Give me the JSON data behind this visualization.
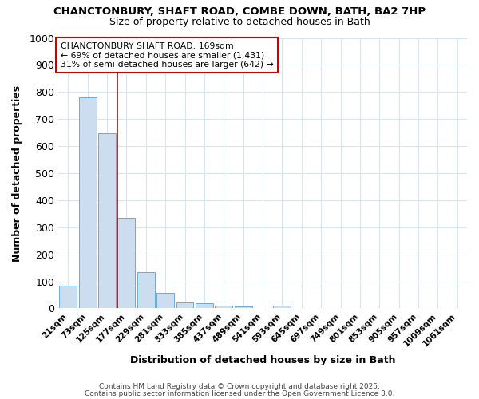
{
  "title1": "CHANCTONBURY, SHAFT ROAD, COMBE DOWN, BATH, BA2 7HP",
  "title2": "Size of property relative to detached houses in Bath",
  "xlabel": "Distribution of detached houses by size in Bath",
  "ylabel": "Number of detached properties",
  "bar_color": "#ccddf0",
  "bar_edge_color": "#6aaad4",
  "categories": [
    "21sqm",
    "73sqm",
    "125sqm",
    "177sqm",
    "229sqm",
    "281sqm",
    "333sqm",
    "385sqm",
    "437sqm",
    "489sqm",
    "541sqm",
    "593sqm",
    "645sqm",
    "697sqm",
    "749sqm",
    "801sqm",
    "853sqm",
    "905sqm",
    "957sqm",
    "1009sqm",
    "1061sqm"
  ],
  "values": [
    85,
    780,
    648,
    335,
    135,
    58,
    22,
    18,
    10,
    8,
    0,
    10,
    0,
    0,
    0,
    0,
    0,
    0,
    0,
    0,
    0
  ],
  "ylim": [
    0,
    1000
  ],
  "yticks": [
    0,
    100,
    200,
    300,
    400,
    500,
    600,
    700,
    800,
    900,
    1000
  ],
  "red_line_x": 2.52,
  "annotation_line1": "CHANCTONBURY SHAFT ROAD: 169sqm",
  "annotation_line2": "← 69% of detached houses are smaller (1,431)",
  "annotation_line3": "31% of semi-detached houses are larger (642) →",
  "annotation_box_color": "#ffffff",
  "annotation_box_edge": "#cc0000",
  "footer1": "Contains HM Land Registry data © Crown copyright and database right 2025.",
  "footer2": "Contains public sector information licensed under the Open Government Licence 3.0.",
  "background_color": "#ffffff",
  "grid_color": "#d8e4f0"
}
